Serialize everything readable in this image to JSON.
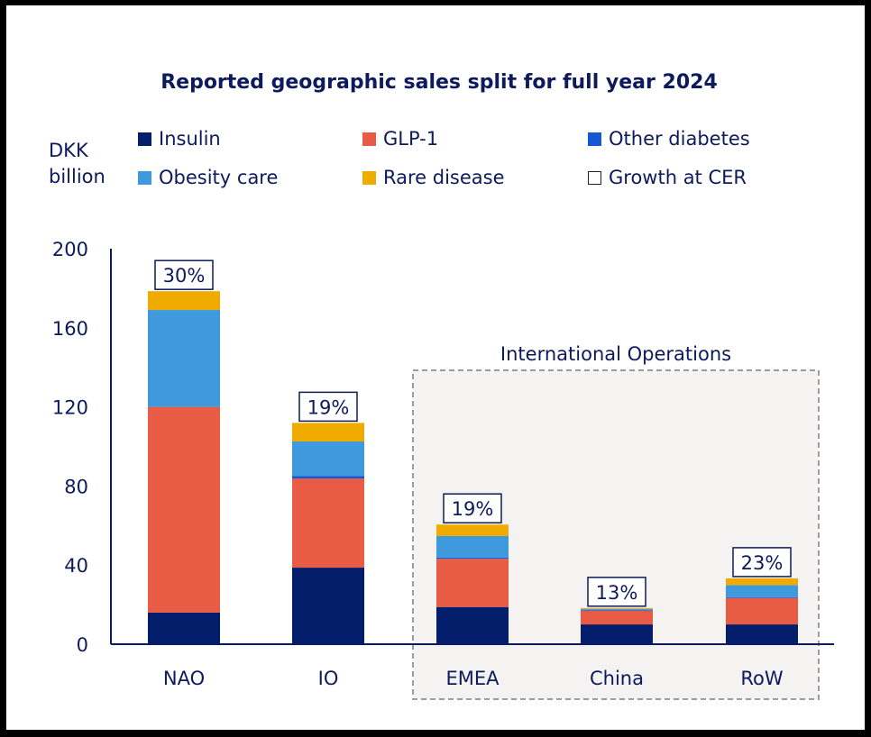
{
  "chart_data": {
    "type": "bar",
    "stacked": true,
    "title": "Reported geographic sales split for full year 2024",
    "ylabel": "DKK billion",
    "ylim": [
      0,
      200
    ],
    "yticks": [
      0,
      40,
      80,
      120,
      160,
      200
    ],
    "grid": false,
    "legend_position": "top",
    "categories": [
      "NAO",
      "IO",
      "EMEA",
      "China",
      "RoW"
    ],
    "series": [
      {
        "name": "Insulin",
        "color": "#051e6b",
        "values": [
          16.0,
          38.7,
          18.8,
          10.0,
          10.0
        ]
      },
      {
        "name": "GLP-1",
        "color": "#e85b44",
        "values": [
          104.0,
          45.1,
          24.4,
          7.0,
          13.4
        ]
      },
      {
        "name": "Other diabetes",
        "color": "#1259d3",
        "values": [
          0.0,
          1.3,
          0.6,
          0.4,
          0.4
        ]
      },
      {
        "name": "Obesity care",
        "color": "#3e99dd",
        "values": [
          49.0,
          17.4,
          10.9,
          0.5,
          6.1
        ]
      },
      {
        "name": "Rare disease",
        "color": "#f0ab00",
        "values": [
          9.5,
          9.4,
          5.8,
          0.4,
          3.4
        ]
      }
    ],
    "legend_extra": {
      "name": "Growth at CER"
    },
    "growth_labels": [
      "30%",
      "19%",
      "19%",
      "13%",
      "23%"
    ],
    "group_annotation": {
      "label": "International Operations",
      "categories": [
        "EMEA",
        "China",
        "RoW"
      ]
    }
  }
}
